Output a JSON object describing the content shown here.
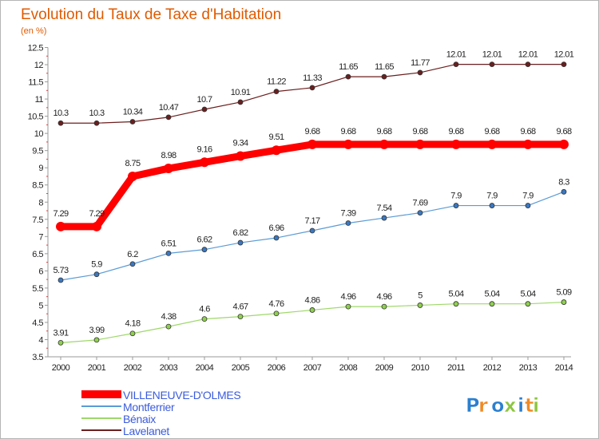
{
  "chart_data": {
    "type": "line",
    "title": "Evolution du Taux de Taxe d'Habitation",
    "subtitle": "(en %)",
    "xlabel": "",
    "ylabel": "",
    "x": [
      "2000",
      "2001",
      "2002",
      "2003",
      "2004",
      "2005",
      "2006",
      "2007",
      "2008",
      "2009",
      "2010",
      "2011",
      "2012",
      "2013",
      "2014"
    ],
    "ylim": [
      3.5,
      12.5
    ],
    "yticks": [
      3.5,
      4,
      4.5,
      5,
      5.5,
      6,
      6.5,
      7,
      7.5,
      8,
      8.5,
      9,
      9.5,
      10,
      10.5,
      11,
      11.5,
      12,
      12.5
    ],
    "ytick_labels": [
      "3.5",
      "4",
      "4.5",
      "5",
      "5.5",
      "6",
      "6.5",
      "7",
      "7.5",
      "8",
      "8.5",
      "9",
      "9.5",
      "10",
      "10.5",
      "11",
      "11.5",
      "12",
      "12.5"
    ],
    "grid": false,
    "legend_position": "bottom-left",
    "series": [
      {
        "name": "Lavelanet",
        "color": "#6b1e1e",
        "marker_color": "#6b1e1e",
        "width": 1.2,
        "values": [
          10.3,
          10.3,
          10.34,
          10.47,
          10.7,
          10.91,
          11.22,
          11.33,
          11.65,
          11.65,
          11.77,
          12.01,
          12.01,
          12.01,
          12.01
        ],
        "labels": [
          "10.3",
          "10.3",
          "10.34",
          "10.47",
          "10.7",
          "10.91",
          "11.22",
          "11.33",
          "11.65",
          "11.65",
          "11.77",
          "12.01",
          "12.01",
          "12.01",
          "12.01"
        ]
      },
      {
        "name": "VILLENEUVE-D'OLMES",
        "color": "#ff0000",
        "marker_color": "#ff0000",
        "width": 9,
        "values": [
          7.29,
          7.29,
          8.75,
          8.98,
          9.16,
          9.34,
          9.51,
          9.68,
          9.68,
          9.68,
          9.68,
          9.68,
          9.68,
          9.68,
          9.68
        ],
        "labels": [
          "7.29",
          "7.29",
          "8.75",
          "8.98",
          "9.16",
          "9.34",
          "9.51",
          "9.68",
          "9.68",
          "9.68",
          "9.68",
          "9.68",
          "9.68",
          "9.68",
          "9.68"
        ]
      },
      {
        "name": "Montferrier",
        "color": "#5b9bd5",
        "marker_color": "#3a78c2",
        "width": 1.2,
        "values": [
          5.73,
          5.9,
          6.2,
          6.51,
          6.62,
          6.82,
          6.96,
          7.17,
          7.39,
          7.54,
          7.69,
          7.9,
          7.9,
          7.9,
          8.3
        ],
        "labels": [
          "5.73",
          "5.9",
          "6.2",
          "6.51",
          "6.62",
          "6.82",
          "6.96",
          "7.17",
          "7.39",
          "7.54",
          "7.69",
          "7.9",
          "7.9",
          "7.9",
          "8.3"
        ]
      },
      {
        "name": "Bénaix",
        "color": "#9fd86b",
        "marker_color": "#8fd04e",
        "width": 1.2,
        "values": [
          3.91,
          3.99,
          4.18,
          4.38,
          4.6,
          4.67,
          4.76,
          4.86,
          4.96,
          4.96,
          5.0,
          5.04,
          5.04,
          5.04,
          5.09
        ],
        "labels": [
          "3.91",
          "3.99",
          "4.18",
          "4.38",
          "4.6",
          "4.67",
          "4.76",
          "4.86",
          "4.96",
          "4.96",
          "5",
          "5.04",
          "5.04",
          "5.04",
          "5.09"
        ]
      }
    ],
    "legend": [
      {
        "name": "VILLENEUVE-D'OLMES",
        "color": "#ff0000",
        "bold": true
      },
      {
        "name": "Montferrier",
        "color": "#5b9bd5",
        "bold": false
      },
      {
        "name": "Bénaix",
        "color": "#9fd86b",
        "bold": false
      },
      {
        "name": "Lavelanet",
        "color": "#6b1e1e",
        "bold": false
      }
    ],
    "legend_text_color": "#3b5bdb"
  },
  "logo": {
    "text": "Proxiti",
    "colors": [
      "#2b7fd0",
      "#f08a24",
      "#2b7fd0",
      "#8cc63f",
      "#2b7fd0",
      "#f08a24",
      "#8cc63f"
    ]
  }
}
